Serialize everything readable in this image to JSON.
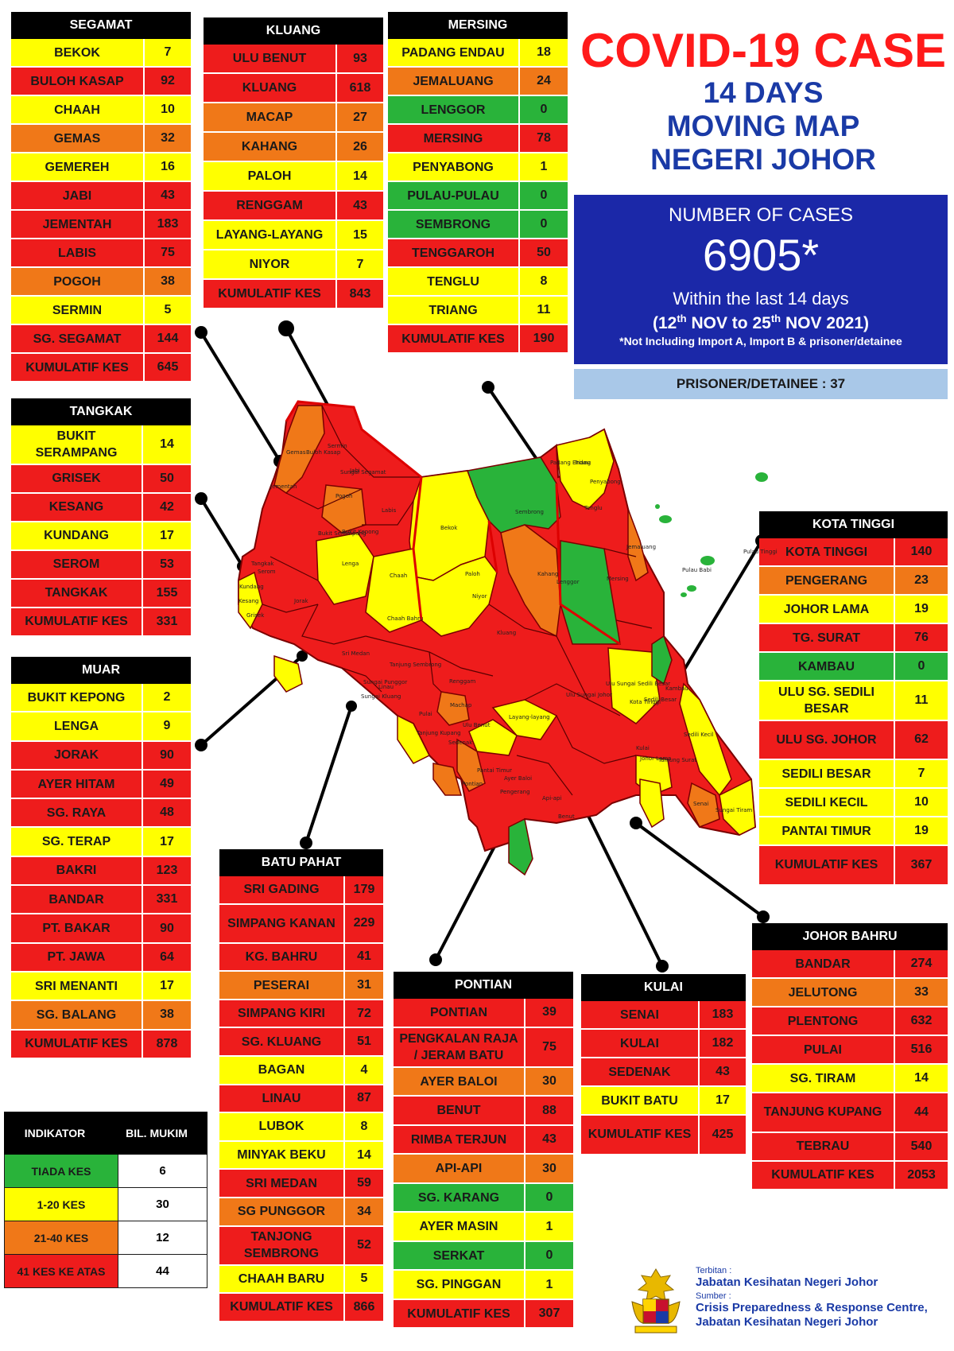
{
  "title": {
    "main": "COVID-19 CASE",
    "line2": "14 DAYS",
    "line3": "MOVING MAP",
    "line4": "NEGERI JOHOR"
  },
  "cases": {
    "label": "NUMBER OF CASES",
    "number": "6905*",
    "within": "Within the last 14 days",
    "range_start_day": "12",
    "range_start_sup": "th",
    "range_start_rest": " NOV to 25",
    "range_end_sup": "th",
    "range_end_rest": " NOV 2021)",
    "range_open": "(",
    "note": "*Not Including Import A, Import B & prisoner/detainee"
  },
  "prisoner": "PRISONER/DETAINEE : 37",
  "colors": {
    "red": "#ee1c1c",
    "yellow": "#ffff00",
    "orange": "#f07818",
    "green": "#29b33a",
    "header": "#000000",
    "title_red": "#ff1a1a",
    "title_blue": "#1a3aa6",
    "cases_box": "#1b28a8",
    "prisoner_box": "#a9c8e8"
  },
  "districts": {
    "segamat": {
      "name": "SEGAMAT",
      "rows": [
        {
          "name": "BEKOK",
          "value": "7",
          "level": "y"
        },
        {
          "name": "BULOH KASAP",
          "value": "92",
          "level": "r"
        },
        {
          "name": "CHAAH",
          "value": "10",
          "level": "y"
        },
        {
          "name": "GEMAS",
          "value": "32",
          "level": "o"
        },
        {
          "name": "GEMEREH",
          "value": "16",
          "level": "y"
        },
        {
          "name": "JABI",
          "value": "43",
          "level": "r"
        },
        {
          "name": "JEMENTAH",
          "value": "183",
          "level": "r"
        },
        {
          "name": "LABIS",
          "value": "75",
          "level": "r"
        },
        {
          "name": "POGOH",
          "value": "38",
          "level": "o"
        },
        {
          "name": "SERMIN",
          "value": "5",
          "level": "y"
        },
        {
          "name": "SG. SEGAMAT",
          "value": "144",
          "level": "r"
        },
        {
          "name": "KUMULATIF KES",
          "value": "645",
          "level": "r"
        }
      ]
    },
    "kluang": {
      "name": "KLUANG",
      "rows": [
        {
          "name": "ULU BENUT",
          "value": "93",
          "level": "r"
        },
        {
          "name": "KLUANG",
          "value": "618",
          "level": "r"
        },
        {
          "name": "MACAP",
          "value": "27",
          "level": "o"
        },
        {
          "name": "KAHANG",
          "value": "26",
          "level": "o"
        },
        {
          "name": "PALOH",
          "value": "14",
          "level": "y"
        },
        {
          "name": "RENGGAM",
          "value": "43",
          "level": "r"
        },
        {
          "name": "LAYANG-LAYANG",
          "value": "15",
          "level": "y"
        },
        {
          "name": "NIYOR",
          "value": "7",
          "level": "y"
        },
        {
          "name": "KUMULATIF KES",
          "value": "843",
          "level": "r"
        }
      ]
    },
    "mersing": {
      "name": "MERSING",
      "rows": [
        {
          "name": "PADANG ENDAU",
          "value": "18",
          "level": "y"
        },
        {
          "name": "JEMALUANG",
          "value": "24",
          "level": "o"
        },
        {
          "name": "LENGGOR",
          "value": "0",
          "level": "g"
        },
        {
          "name": "MERSING",
          "value": "78",
          "level": "r"
        },
        {
          "name": "PENYABONG",
          "value": "1",
          "level": "y"
        },
        {
          "name": "PULAU-PULAU",
          "value": "0",
          "level": "g"
        },
        {
          "name": "SEMBRONG",
          "value": "0",
          "level": "g"
        },
        {
          "name": "TENGGAROH",
          "value": "50",
          "level": "r"
        },
        {
          "name": "TENGLU",
          "value": "8",
          "level": "y"
        },
        {
          "name": "TRIANG",
          "value": "11",
          "level": "y"
        },
        {
          "name": "KUMULATIF KES",
          "value": "190",
          "level": "r"
        }
      ]
    },
    "tangkak": {
      "name": "TANGKAK",
      "rows": [
        {
          "name": "BUKIT SERAMPANG",
          "value": "14",
          "level": "y",
          "tall": true
        },
        {
          "name": "GRISEK",
          "value": "50",
          "level": "r"
        },
        {
          "name": "KESANG",
          "value": "42",
          "level": "r"
        },
        {
          "name": "KUNDANG",
          "value": "17",
          "level": "y"
        },
        {
          "name": "SEROM",
          "value": "53",
          "level": "r"
        },
        {
          "name": "TANGKAK",
          "value": "155",
          "level": "r"
        },
        {
          "name": "KUMULATIF KES",
          "value": "331",
          "level": "r"
        }
      ]
    },
    "muar": {
      "name": "MUAR",
      "rows": [
        {
          "name": "BUKIT KEPONG",
          "value": "2",
          "level": "y"
        },
        {
          "name": "LENGA",
          "value": "9",
          "level": "y"
        },
        {
          "name": "JORAK",
          "value": "90",
          "level": "r"
        },
        {
          "name": "AYER HITAM",
          "value": "49",
          "level": "r"
        },
        {
          "name": "SG. RAYA",
          "value": "48",
          "level": "r"
        },
        {
          "name": "SG. TERAP",
          "value": "17",
          "level": "y"
        },
        {
          "name": "BAKRI",
          "value": "123",
          "level": "r"
        },
        {
          "name": "BANDAR",
          "value": "331",
          "level": "r"
        },
        {
          "name": "PT. BAKAR",
          "value": "90",
          "level": "r"
        },
        {
          "name": "PT. JAWA",
          "value": "64",
          "level": "r"
        },
        {
          "name": "SRI MENANTI",
          "value": "17",
          "level": "y"
        },
        {
          "name": "SG. BALANG",
          "value": "38",
          "level": "o"
        },
        {
          "name": "KUMULATIF KES",
          "value": "878",
          "level": "r"
        }
      ]
    },
    "kota_tinggi": {
      "name": "KOTA TINGGI",
      "rows": [
        {
          "name": "KOTA TINGGI",
          "value": "140",
          "level": "r"
        },
        {
          "name": "PENGERANG",
          "value": "23",
          "level": "o"
        },
        {
          "name": "JOHOR LAMA",
          "value": "19",
          "level": "y"
        },
        {
          "name": "TG. SURAT",
          "value": "76",
          "level": "r"
        },
        {
          "name": "KAMBAU",
          "value": "0",
          "level": "g"
        },
        {
          "name": "ULU SG. SEDILI BESAR",
          "value": "11",
          "level": "y",
          "tall": true
        },
        {
          "name": "ULU  SG. JOHOR",
          "value": "62",
          "level": "r",
          "tall": true
        },
        {
          "name": "SEDILI BESAR",
          "value": "7",
          "level": "y"
        },
        {
          "name": "SEDILI KECIL",
          "value": "10",
          "level": "y"
        },
        {
          "name": "PANTAI TIMUR",
          "value": "19",
          "level": "y"
        },
        {
          "name": "KUMULATIF KES",
          "value": "367",
          "level": "r",
          "tall": true
        }
      ]
    },
    "batu_pahat": {
      "name": "BATU PAHAT",
      "rows": [
        {
          "name": "SRI GADING",
          "value": "179",
          "level": "r"
        },
        {
          "name": "SIMPANG KANAN",
          "value": "229",
          "level": "r",
          "tall": true
        },
        {
          "name": "KG. BAHRU",
          "value": "41",
          "level": "r"
        },
        {
          "name": "PESERAI",
          "value": "31",
          "level": "o"
        },
        {
          "name": "SIMPANG KIRI",
          "value": "72",
          "level": "r"
        },
        {
          "name": "SG. KLUANG",
          "value": "51",
          "level": "r"
        },
        {
          "name": "BAGAN",
          "value": "4",
          "level": "y"
        },
        {
          "name": "LINAU",
          "value": "87",
          "level": "r"
        },
        {
          "name": "LUBOK",
          "value": "8",
          "level": "y"
        },
        {
          "name": "MINYAK BEKU",
          "value": "14",
          "level": "y"
        },
        {
          "name": "SRI MEDAN",
          "value": "59",
          "level": "r"
        },
        {
          "name": "SG PUNGGOR",
          "value": "34",
          "level": "o"
        },
        {
          "name": "TANJONG SEMBRONG",
          "value": "52",
          "level": "r",
          "tall": true
        },
        {
          "name": "CHAAH BARU",
          "value": "5",
          "level": "y"
        },
        {
          "name": "KUMULATIF KES",
          "value": "866",
          "level": "r"
        }
      ]
    },
    "pontian": {
      "name": "PONTIAN",
      "rows": [
        {
          "name": "PONTIAN",
          "value": "39",
          "level": "r"
        },
        {
          "name": "PENGKALAN RAJA / JERAM BATU",
          "value": "75",
          "level": "r",
          "tall": true
        },
        {
          "name": "AYER BALOI",
          "value": "30",
          "level": "o"
        },
        {
          "name": "BENUT",
          "value": "88",
          "level": "r"
        },
        {
          "name": "RIMBA TERJUN",
          "value": "43",
          "level": "r"
        },
        {
          "name": "API-API",
          "value": "30",
          "level": "o"
        },
        {
          "name": "SG. KARANG",
          "value": "0",
          "level": "g"
        },
        {
          "name": "AYER MASIN",
          "value": "1",
          "level": "y"
        },
        {
          "name": "SERKAT",
          "value": "0",
          "level": "g"
        },
        {
          "name": "SG. PINGGAN",
          "value": "1",
          "level": "y"
        },
        {
          "name": "KUMULATIF KES",
          "value": "307",
          "level": "r"
        }
      ]
    },
    "kulai": {
      "name": "KULAI",
      "rows": [
        {
          "name": "SENAI",
          "value": "183",
          "level": "r"
        },
        {
          "name": "KULAI",
          "value": "182",
          "level": "r"
        },
        {
          "name": "SEDENAK",
          "value": "43",
          "level": "r"
        },
        {
          "name": "BUKIT BATU",
          "value": "17",
          "level": "y"
        },
        {
          "name": "KUMULATIF KES",
          "value": "425",
          "level": "r",
          "tall": true
        }
      ]
    },
    "johor_bahru": {
      "name": "JOHOR BAHRU",
      "rows": [
        {
          "name": "BANDAR",
          "value": "274",
          "level": "r"
        },
        {
          "name": "JELUTONG",
          "value": "33",
          "level": "o"
        },
        {
          "name": "PLENTONG",
          "value": "632",
          "level": "r"
        },
        {
          "name": "PULAI",
          "value": "516",
          "level": "r"
        },
        {
          "name": "SG. TIRAM",
          "value": "14",
          "level": "y"
        },
        {
          "name": "TANJUNG KUPANG",
          "value": "44",
          "level": "r",
          "tall": true
        },
        {
          "name": "TEBRAU",
          "value": "540",
          "level": "r"
        },
        {
          "name": "KUMULATIF KES",
          "value": "2053",
          "level": "r"
        }
      ]
    }
  },
  "legend": {
    "col1": "INDIKATOR",
    "col2": "BIL. MUKIM",
    "rows": [
      {
        "label": "TIADA KES",
        "count": "6",
        "level": "g"
      },
      {
        "label": "1-20 KES",
        "count": "30",
        "level": "y"
      },
      {
        "label": "21-40 KES",
        "count": "12",
        "level": "o"
      },
      {
        "label": "41 KES KE ATAS",
        "count": "44",
        "level": "r"
      }
    ]
  },
  "footer": {
    "published_label": "Terbitan :",
    "publisher": "Jabatan Kesihatan Negeri Johor",
    "source_label": "Sumber :",
    "source_line1": "Crisis Preparedness & Response Centre,",
    "source_line2": "Jabatan Kesihatan Negeri Johor"
  },
  "map_labels": [
    "Gemas",
    "Buloh Kasap",
    "Sermin",
    "Jementah",
    "Sungai Segamat",
    "Pogoh",
    "Jabi",
    "Labis",
    "Bukit Serampang",
    "Bukit Kepong",
    "Bekok",
    "Sembrong",
    "Tenglu",
    "Triang",
    "Penyabong",
    "Padang Endau",
    "Pulau Tinggi",
    "Pulau Babi",
    "Jemaluang",
    "Kahang",
    "Paloh",
    "Niyor",
    "Lenga",
    "Chaah",
    "Chaah Bahru",
    "Lenggor",
    "Mersing",
    "Tangkak",
    "Serom",
    "Kundang",
    "Kesang",
    "Grisek",
    "Jorak",
    "Kluang",
    "Sri Medan",
    "Tanjung Sembrong",
    "Ulu Sungai Sedili Besar",
    "Sedili Besar",
    "Kambau",
    "Linau",
    "Renggam",
    "Ulu Sungai Johor",
    "Kota Tinggi",
    "Sedili Kecil",
    "Layang-layang",
    "Machap",
    "Ulu Benut",
    "Sedenak",
    "Johor Lama",
    "Tanjung Surat",
    "Kulai",
    "Senai",
    "Sungai Tiram",
    "Pengerang",
    "Pantai Timur",
    "Pontian",
    "Ayer Baloi",
    "Api-api",
    "Benut",
    "Pulai",
    "Tanjung Kupang",
    "Sungai Punggor",
    "Sungai Kluang",
    "Bagan",
    "Lubok"
  ]
}
